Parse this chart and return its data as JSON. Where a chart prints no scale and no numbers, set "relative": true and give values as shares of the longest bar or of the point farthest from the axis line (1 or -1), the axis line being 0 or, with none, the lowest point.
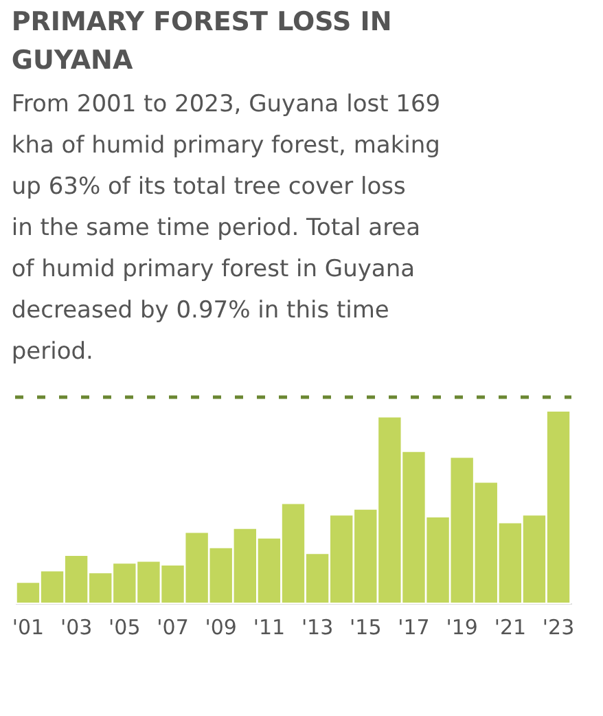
{
  "chart_data": {
    "type": "bar",
    "title": "PRIMARY FOREST LOSS IN GUYANA",
    "subtitle": "From 2001 to 2023, Guyana lost 169 kha of humid primary forest, making up 63% of its total tree cover loss in the same time period. Total area of humid primary forest in Guyana decreased by 0.97% in this time period.",
    "relative": true,
    "categories": [
      "'01",
      null,
      "'03",
      null,
      "'05",
      null,
      "'07",
      null,
      "'09",
      null,
      "'11",
      null,
      "'13",
      null,
      "'15",
      null,
      "'17",
      null,
      "'19",
      null,
      "'21",
      null,
      "'23"
    ],
    "series": [
      {
        "color": "#c2d65c",
        "values": [
          0.11,
          0.17,
          0.25,
          0.16,
          0.21,
          0.22,
          0.2,
          0.37,
          0.29,
          0.39,
          0.34,
          0.52,
          0.26,
          0.46,
          0.49,
          0.97,
          0.79,
          0.45,
          0.76,
          0.63,
          0.42,
          0.46,
          1
        ]
      }
    ],
    "grid": false
  }
}
